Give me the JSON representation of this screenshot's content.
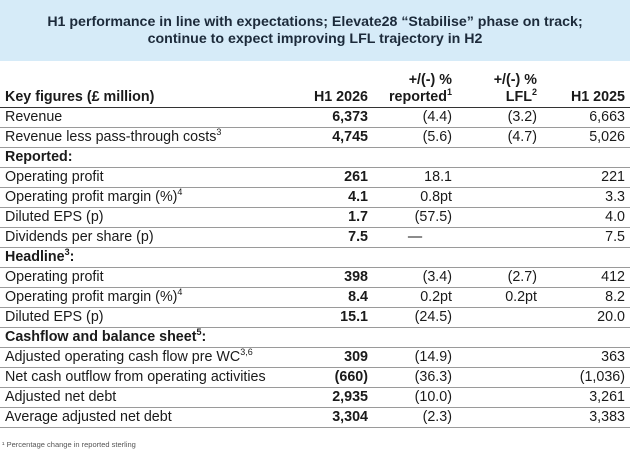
{
  "banner": {
    "line1": "H1 performance in line with expectations; Elevate28 “Stabilise” phase on track;",
    "line2": "continue to expect improving LFL trajectory in H2"
  },
  "header": {
    "label": "Key figures (£ million)",
    "h1_2026": "H1 2026",
    "reported_line1": "+/(-) %",
    "reported_line2": "reported",
    "reported_sup": "1",
    "lfl_line1": "+/(-) %",
    "lfl_line2": "LFL",
    "lfl_sup": "2",
    "h1_2025": "H1 2025"
  },
  "rows": [
    {
      "label": "Revenue",
      "sup": "",
      "h1_2026": "6,373",
      "reported": "(4.4)",
      "lfl": "(3.2)",
      "h1_2025": "6,663"
    },
    {
      "label": "Revenue less pass-through costs",
      "sup": "3",
      "h1_2026": "4,745",
      "reported": "(5.6)",
      "lfl": "(4.7)",
      "h1_2025": "5,026"
    },
    {
      "section": "Reported:",
      "section_sup": ""
    },
    {
      "label": "Operating profit",
      "sup": "",
      "h1_2026": "261",
      "reported": "18.1",
      "lfl": "",
      "h1_2025": "221"
    },
    {
      "label": "Operating profit margin (%)",
      "sup": "4",
      "h1_2026": "4.1",
      "reported": "0.8pt",
      "lfl": "",
      "h1_2025": "3.3"
    },
    {
      "label": "Diluted EPS (p)",
      "sup": "",
      "h1_2026": "1.7",
      "reported": "(57.5)",
      "lfl": "",
      "h1_2025": "4.0"
    },
    {
      "label": "Dividends per share (p)",
      "sup": "",
      "h1_2026": "7.5",
      "reported": "—",
      "lfl": "",
      "h1_2025": "7.5"
    },
    {
      "section": "Headline",
      "section_sup": "3",
      "section_suffix": ":"
    },
    {
      "label": "Operating profit",
      "sup": "",
      "h1_2026": "398",
      "reported": "(3.4)",
      "lfl": "(2.7)",
      "h1_2025": "412"
    },
    {
      "label": "Operating profit margin (%)",
      "sup": "4",
      "h1_2026": "8.4",
      "reported": "0.2pt",
      "lfl": "0.2pt",
      "h1_2025": "8.2"
    },
    {
      "label": "Diluted EPS (p)",
      "sup": "",
      "h1_2026": "15.1",
      "reported": "(24.5)",
      "lfl": "",
      "h1_2025": "20.0"
    },
    {
      "section": "Cashflow and balance sheet",
      "section_sup": "5",
      "section_suffix": ":"
    },
    {
      "label": "Adjusted operating cash flow pre WC",
      "sup": "3,6",
      "h1_2026": "309",
      "reported": "(14.9)",
      "lfl": "",
      "h1_2025": "363"
    },
    {
      "label": "Net cash outflow from operating activities",
      "sup": "",
      "h1_2026": "(660)",
      "reported": "(36.3)",
      "lfl": "",
      "h1_2025": "(1,036)"
    },
    {
      "label": "Adjusted net debt",
      "sup": "",
      "h1_2026": "2,935",
      "reported": "(10.0)",
      "lfl": "",
      "h1_2025": "3,261"
    },
    {
      "label": "Average adjusted net debt",
      "sup": "",
      "h1_2026": "3,304",
      "reported": "(2.3)",
      "lfl": "",
      "h1_2025": "3,383"
    }
  ],
  "footnote": "¹ Percentage change in reported sterling"
}
